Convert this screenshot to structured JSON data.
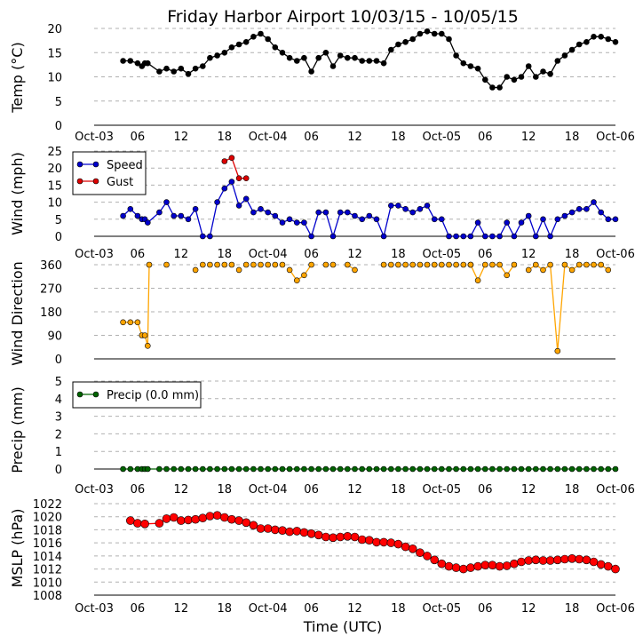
{
  "chart_data": {
    "type": "line",
    "title": "Friday Harbor Airport 10/03/15 - 10/05/15",
    "xlabel": "Time (UTC)",
    "x_tick_labels": [
      "Oct-03",
      "06",
      "12",
      "18",
      "Oct-04",
      "06",
      "12",
      "18",
      "Oct-05",
      "06",
      "12",
      "18",
      "Oct-06"
    ],
    "x_tick_hours": [
      0,
      6,
      12,
      18,
      24,
      30,
      36,
      42,
      48,
      54,
      60,
      66,
      72
    ],
    "xlim_hours": [
      0,
      72
    ],
    "colors": {
      "temp": "#000000",
      "speed": "#0000cc",
      "gust": "#dd0000",
      "direction": "#ffa500",
      "precip": "#006400",
      "mslp": "#ff0000"
    },
    "panels": [
      {
        "id": "temp",
        "ylabel": "Temp (°C)",
        "ylim": [
          0,
          20
        ],
        "yticks": [
          0,
          5,
          10,
          15,
          20
        ],
        "series": [
          {
            "name": "Temp",
            "color": "#000000",
            "line": true,
            "marker_size": 3,
            "x": [
              4,
              5,
              6,
              6.6,
              7,
              7.4,
              9,
              10,
              11,
              12,
              13,
              14,
              15,
              16,
              17,
              18,
              19,
              20,
              21,
              22,
              23,
              24,
              25,
              26,
              27,
              28,
              29,
              30,
              31,
              32,
              33,
              34,
              35,
              36,
              37,
              38,
              39,
              40,
              41,
              42,
              43,
              44,
              45,
              46,
              47,
              48,
              49,
              50,
              51,
              52,
              53,
              54,
              55,
              56,
              57,
              58,
              59,
              60,
              61,
              62,
              63,
              64,
              65,
              66,
              67,
              68,
              69,
              70,
              71,
              72
            ],
            "y": [
              13.3,
              13.3,
              12.8,
              12.2,
              12.8,
              12.8,
              11.1,
              11.7,
              11.1,
              11.7,
              10.6,
              11.7,
              12.2,
              13.9,
              14.4,
              15.0,
              16.1,
              16.7,
              17.2,
              18.3,
              18.9,
              17.8,
              16.1,
              15.0,
              13.9,
              13.3,
              13.9,
              11.1,
              13.9,
              15.0,
              12.2,
              14.4,
              13.9,
              13.9,
              13.3,
              13.3,
              13.3,
              12.8,
              15.6,
              16.7,
              17.2,
              17.8,
              18.9,
              19.4,
              18.9,
              18.9,
              17.8,
              14.4,
              12.8,
              12.2,
              11.7,
              9.4,
              7.8,
              7.8,
              10.0,
              9.4,
              10.0,
              12.2,
              10.0,
              11.1,
              10.6,
              13.3,
              14.4,
              15.6,
              16.7,
              17.2,
              18.3,
              18.3,
              17.8,
              17.2
            ]
          }
        ]
      },
      {
        "id": "wind",
        "ylabel": "Wind (mph)",
        "ylim": [
          0,
          25
        ],
        "yticks": [
          0,
          5,
          10,
          15,
          20,
          25
        ],
        "legend": {
          "position": "upper-left",
          "entries": [
            "Speed",
            "Gust"
          ]
        },
        "series": [
          {
            "name": "Speed",
            "color": "#0000cc",
            "line": true,
            "marker_size": 3,
            "x": [
              4,
              5,
              6,
              6.6,
              7,
              7.4,
              9,
              10,
              11,
              12,
              13,
              14,
              15,
              16,
              17,
              18,
              19,
              20,
              21,
              22,
              23,
              24,
              25,
              26,
              27,
              28,
              29,
              30,
              31,
              32,
              33,
              34,
              35,
              36,
              37,
              38,
              39,
              40,
              41,
              42,
              43,
              44,
              45,
              46,
              47,
              48,
              49,
              50,
              51,
              52,
              53,
              54,
              55,
              56,
              57,
              58,
              59,
              60,
              61,
              62,
              63,
              64,
              65,
              66,
              67,
              68,
              69,
              70,
              71,
              72
            ],
            "y": [
              6,
              8,
              6,
              5,
              5,
              4,
              7,
              10,
              6,
              6,
              5,
              8,
              0,
              0,
              10,
              14,
              16,
              9,
              11,
              7,
              8,
              7,
              6,
              4,
              5,
              4,
              4,
              0,
              7,
              7,
              0,
              7,
              7,
              6,
              5,
              6,
              5,
              0,
              9,
              9,
              8,
              7,
              8,
              9,
              5,
              5,
              0,
              0,
              0,
              0,
              4,
              0,
              0,
              0,
              4,
              0,
              4,
              6,
              0,
              5,
              0,
              5,
              6,
              7,
              8,
              8,
              10,
              7,
              5,
              5
            ]
          },
          {
            "name": "Gust",
            "color": "#dd0000",
            "line": true,
            "marker_size": 3,
            "x": [
              18,
              19,
              20,
              21
            ],
            "y": [
              22,
              23,
              17,
              17
            ]
          }
        ]
      },
      {
        "id": "direction",
        "ylabel": "Wind Direction",
        "ylim": [
          0,
          360
        ],
        "yticks": [
          0,
          90,
          180,
          270,
          360
        ],
        "series": [
          {
            "name": "Direction",
            "color": "#ffa500",
            "line": true,
            "marker_size": 3,
            "x": [
              4,
              5,
              6,
              6.6,
              7,
              7.4,
              7.6
            ],
            "y": [
              140,
              140,
              140,
              90,
              90,
              50,
              360
            ]
          },
          {
            "name": "Direction-2",
            "color": "#ffa500",
            "line": false,
            "marker_size": 3,
            "x": [
              10,
              14,
              15,
              16,
              17,
              18,
              19,
              20,
              21,
              22,
              23,
              24,
              25,
              26
            ],
            "y": [
              360,
              340,
              360,
              360,
              360,
              360,
              360,
              340,
              360,
              360,
              360,
              360,
              360,
              360
            ]
          },
          {
            "name": "Direction-3",
            "color": "#ffa500",
            "line": true,
            "marker_size": 3,
            "x": [
              27,
              28,
              29,
              30
            ],
            "y": [
              340,
              300,
              320,
              360
            ]
          },
          {
            "name": "Direction-4",
            "color": "#ffa500",
            "line": false,
            "marker_size": 3,
            "x": [
              32,
              33
            ],
            "y": [
              360,
              360
            ]
          },
          {
            "name": "Direction-5",
            "color": "#ffa500",
            "line": true,
            "marker_size": 3,
            "x": [
              35,
              36
            ],
            "y": [
              360,
              340
            ]
          },
          {
            "name": "Direction-6",
            "color": "#ffa500",
            "line": false,
            "marker_size": 3,
            "x": [
              40,
              41,
              42,
              43,
              44,
              45,
              46,
              47,
              48,
              49,
              50,
              51,
              52
            ],
            "y": [
              360,
              360,
              360,
              360,
              360,
              360,
              360,
              360,
              360,
              360,
              360,
              360,
              360
            ]
          },
          {
            "name": "Direction-7",
            "color": "#ffa500",
            "line": true,
            "marker_size": 3,
            "x": [
              52,
              53,
              54
            ],
            "y": [
              360,
              300,
              360
            ]
          },
          {
            "name": "Direction-8",
            "color": "#ffa500",
            "line": true,
            "marker_size": 3,
            "x": [
              55,
              56,
              57,
              58
            ],
            "y": [
              360,
              360,
              320,
              360
            ]
          },
          {
            "name": "Direction-9",
            "color": "#ffa500",
            "line": true,
            "marker_size": 3,
            "x": [
              60,
              61,
              62,
              63,
              64,
              65,
              66,
              67,
              68,
              69,
              70,
              71
            ],
            "y": [
              340,
              360,
              340,
              360,
              30,
              360,
              340,
              360,
              360,
              360,
              360,
              340
            ]
          }
        ]
      },
      {
        "id": "precip",
        "ylabel": "Precip (mm)",
        "ylim": [
          0,
          5
        ],
        "yticks": [
          0,
          1,
          2,
          3,
          4,
          5
        ],
        "legend": {
          "position": "upper-left",
          "entries": [
            "Precip (0.0 mm)"
          ]
        },
        "series": [
          {
            "name": "Precip (0.0 mm)",
            "color": "#006400",
            "line": true,
            "marker_size": 3,
            "x": [
              4,
              5,
              6,
              6.6,
              7,
              7.4,
              9,
              10,
              11,
              12,
              13,
              14,
              15,
              16,
              17,
              18,
              19,
              20,
              21,
              22,
              23,
              24,
              25,
              26,
              27,
              28,
              29,
              30,
              31,
              32,
              33,
              34,
              35,
              36,
              37,
              38,
              39,
              40,
              41,
              42,
              43,
              44,
              45,
              46,
              47,
              48,
              49,
              50,
              51,
              52,
              53,
              54,
              55,
              56,
              57,
              58,
              59,
              60,
              61,
              62,
              63,
              64,
              65,
              66,
              67,
              68,
              69,
              70,
              71,
              72
            ],
            "y": [
              0,
              0,
              0,
              0,
              0,
              0,
              0,
              0,
              0,
              0,
              0,
              0,
              0,
              0,
              0,
              0,
              0,
              0,
              0,
              0,
              0,
              0,
              0,
              0,
              0,
              0,
              0,
              0,
              0,
              0,
              0,
              0,
              0,
              0,
              0,
              0,
              0,
              0,
              0,
              0,
              0,
              0,
              0,
              0,
              0,
              0,
              0,
              0,
              0,
              0,
              0,
              0,
              0,
              0,
              0,
              0,
              0,
              0,
              0,
              0,
              0,
              0,
              0,
              0,
              0,
              0,
              0,
              0,
              0,
              0
            ]
          }
        ]
      },
      {
        "id": "mslp",
        "ylabel": "MSLP (hPa)",
        "ylim": [
          1008,
          1022
        ],
        "yticks": [
          1008,
          1010,
          1012,
          1014,
          1016,
          1018,
          1020,
          1022
        ],
        "series": [
          {
            "name": "MSLP",
            "color": "#ff0000",
            "line": true,
            "marker_size": 4.5,
            "x": [
              5,
              6,
              7,
              9,
              10,
              11,
              12,
              13,
              14,
              15,
              16,
              17,
              18,
              19,
              20,
              21,
              22,
              23,
              24,
              25,
              26,
              27,
              28,
              29,
              30,
              31,
              32,
              33,
              34,
              35,
              36,
              37,
              38,
              39,
              40,
              41,
              42,
              43,
              44,
              45,
              46,
              47,
              48,
              49,
              50,
              51,
              52,
              53,
              54,
              55,
              56,
              57,
              58,
              59,
              60,
              61,
              62,
              63,
              64,
              65,
              66,
              67,
              68,
              69,
              70,
              71,
              72
            ],
            "y": [
              1019.4,
              1019.0,
              1018.9,
              1019.0,
              1019.7,
              1019.9,
              1019.4,
              1019.5,
              1019.6,
              1019.8,
              1020.1,
              1020.2,
              1019.9,
              1019.6,
              1019.4,
              1019.1,
              1018.7,
              1018.2,
              1018.2,
              1018.0,
              1017.9,
              1017.7,
              1017.8,
              1017.6,
              1017.4,
              1017.2,
              1016.9,
              1016.8,
              1016.9,
              1017.0,
              1016.9,
              1016.5,
              1016.4,
              1016.1,
              1016.1,
              1016.0,
              1015.8,
              1015.4,
              1015.1,
              1014.5,
              1014.0,
              1013.4,
              1012.8,
              1012.4,
              1012.2,
              1012.0,
              1012.2,
              1012.4,
              1012.6,
              1012.6,
              1012.4,
              1012.5,
              1012.8,
              1013.1,
              1013.3,
              1013.4,
              1013.3,
              1013.3,
              1013.4,
              1013.5,
              1013.6,
              1013.5,
              1013.4,
              1013.1,
              1012.7,
              1012.4,
              1012.0
            ]
          }
        ]
      }
    ]
  }
}
